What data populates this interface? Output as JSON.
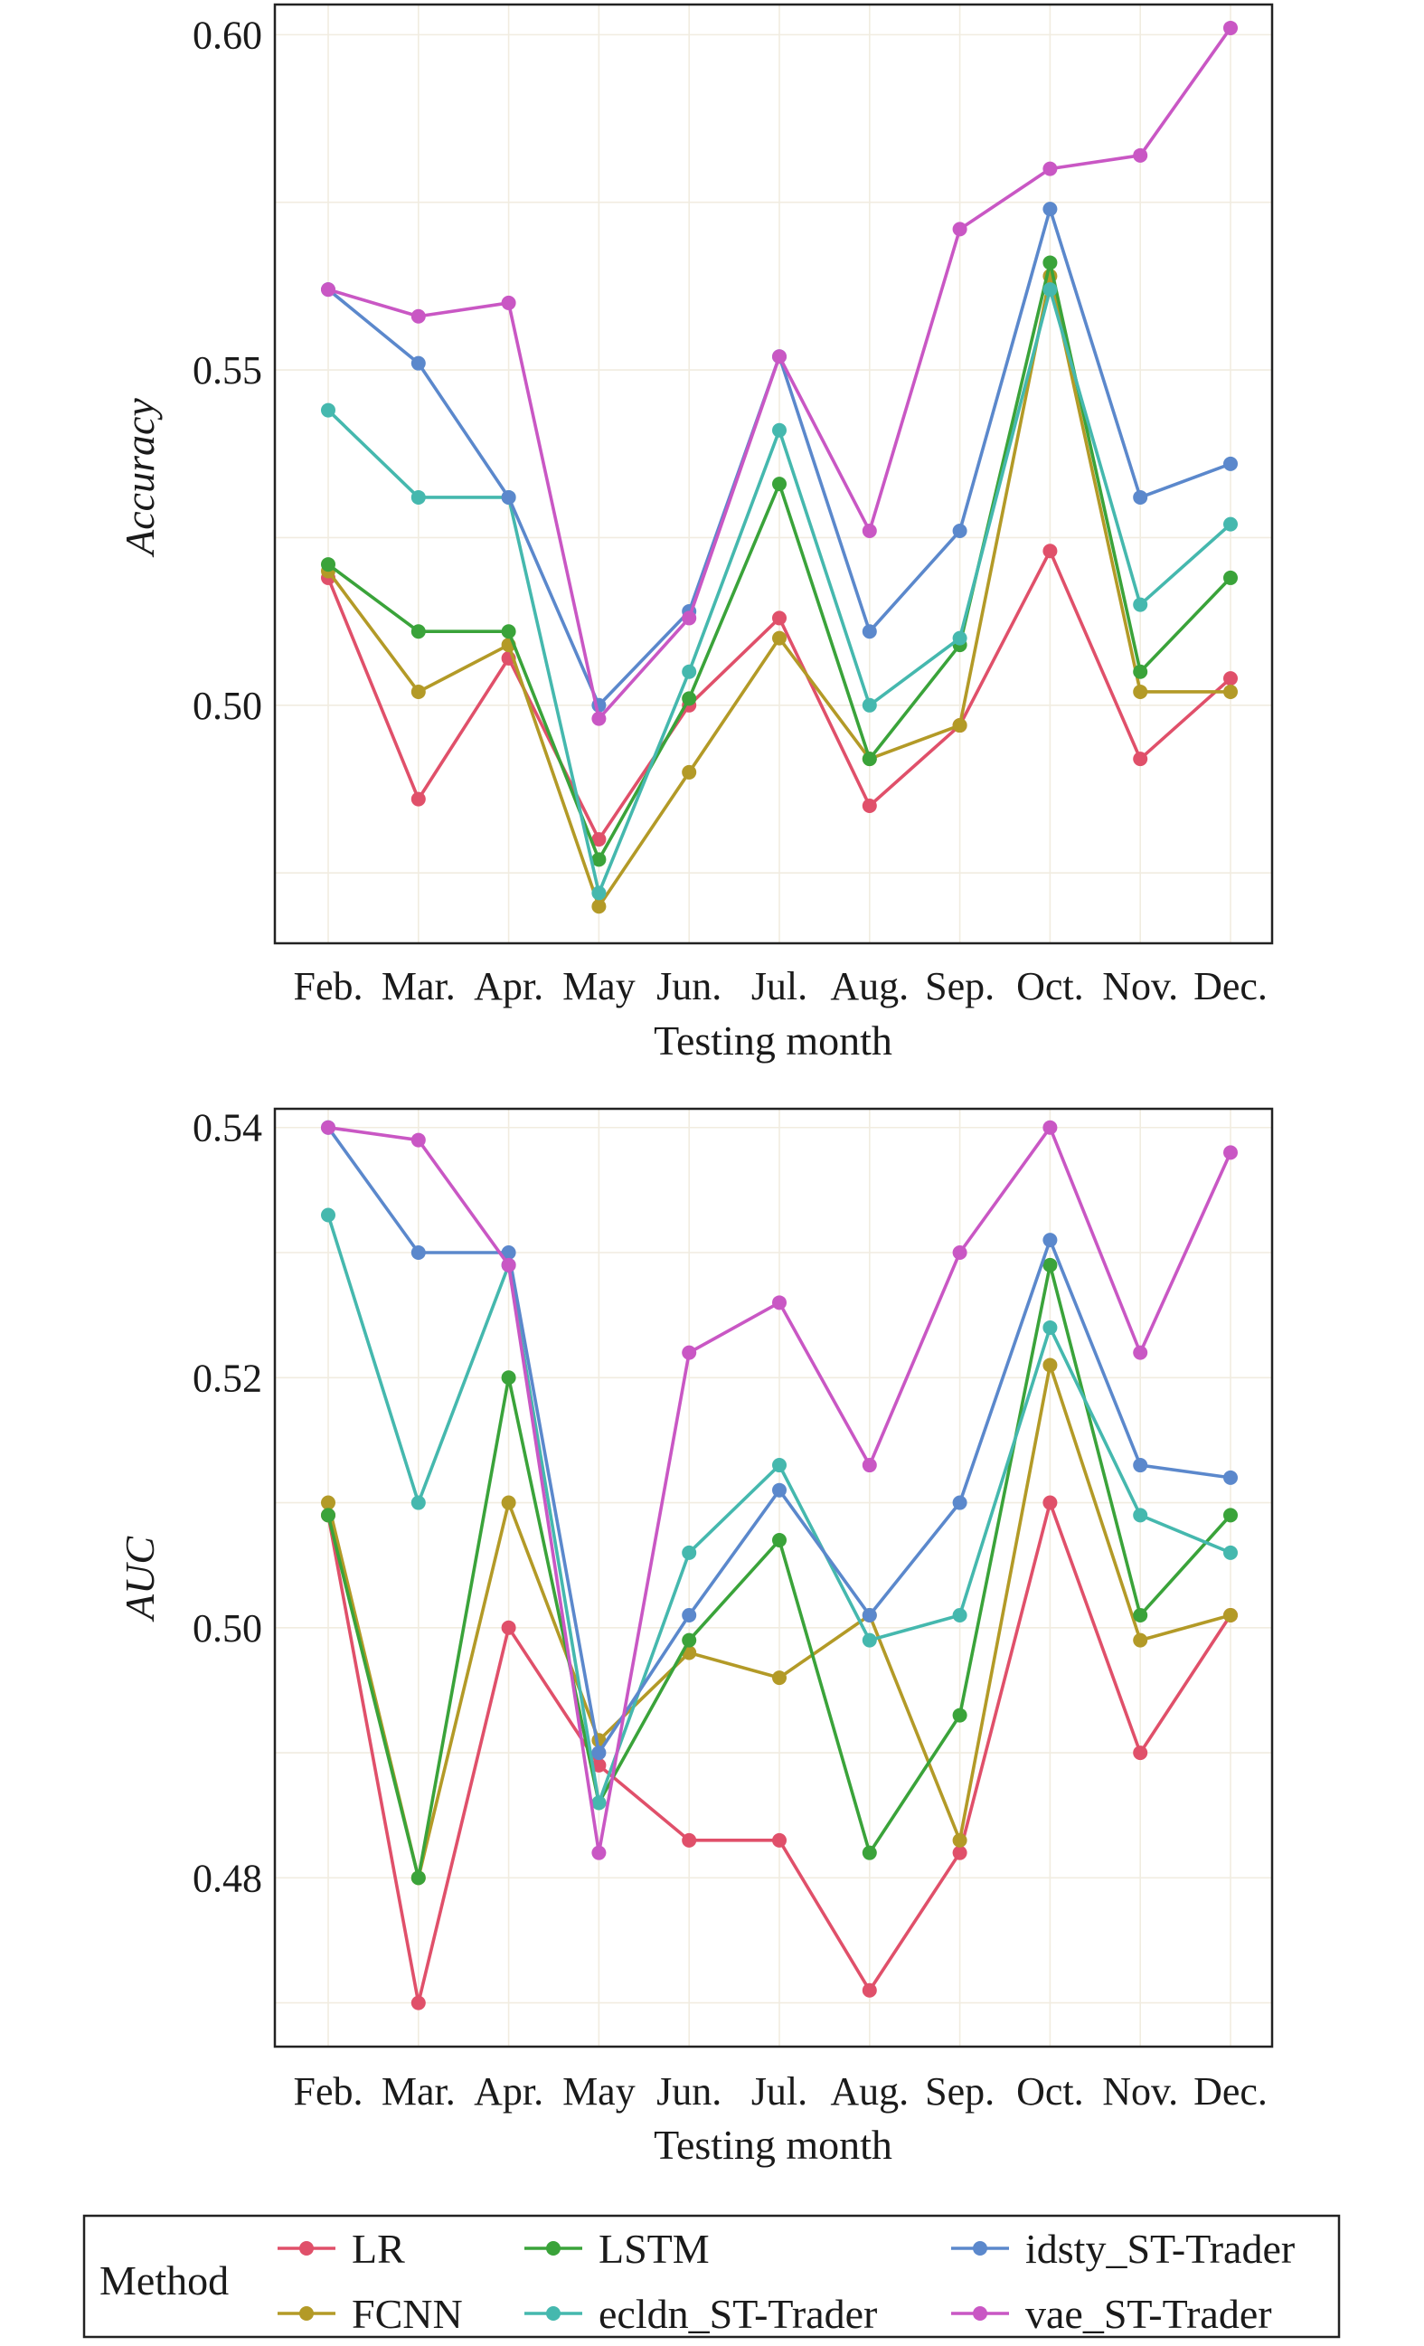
{
  "chart_data": [
    {
      "type": "line",
      "xlabel": "Testing month",
      "ylabel": "Accuracy",
      "categories": [
        "Feb.",
        "Mar.",
        "Apr.",
        "May",
        "Jun.",
        "Jul.",
        "Aug.",
        "Sep.",
        "Oct.",
        "Nov.",
        "Dec."
      ],
      "ylim": [
        0.4645,
        0.6045
      ],
      "yticks": [
        0.5,
        0.55,
        0.6
      ],
      "ytick_labels": [
        "0.50",
        "0.55",
        "0.60"
      ],
      "grid": true,
      "series": [
        {
          "name": "LR",
          "color": "#e0506a",
          "values": [
            0.519,
            0.486,
            0.507,
            0.48,
            0.5,
            0.513,
            0.485,
            0.497,
            0.523,
            0.492,
            0.504
          ]
        },
        {
          "name": "FCNN",
          "color": "#b39a27",
          "values": [
            0.52,
            0.502,
            0.509,
            0.47,
            0.49,
            0.51,
            0.492,
            0.497,
            0.564,
            0.502,
            0.502
          ]
        },
        {
          "name": "LSTM",
          "color": "#3aa33a",
          "values": [
            0.521,
            0.511,
            0.511,
            0.477,
            0.501,
            0.533,
            0.492,
            0.509,
            0.566,
            0.505,
            0.519
          ]
        },
        {
          "name": "ecldn_ST-Trader",
          "color": "#45b8ae",
          "values": [
            0.544,
            0.531,
            0.531,
            0.472,
            0.505,
            0.541,
            0.5,
            0.51,
            0.562,
            0.515,
            0.527
          ]
        },
        {
          "name": "idsty_ST-Trader",
          "color": "#5b88cc",
          "values": [
            0.562,
            0.551,
            0.531,
            0.5,
            0.514,
            0.552,
            0.511,
            0.526,
            0.574,
            0.531,
            0.536
          ]
        },
        {
          "name": "vae_ST-Trader",
          "color": "#c957c4",
          "values": [
            0.562,
            0.558,
            0.56,
            0.498,
            0.513,
            0.552,
            0.526,
            0.571,
            0.58,
            0.582,
            0.601
          ]
        }
      ]
    },
    {
      "type": "line",
      "xlabel": "Testing month",
      "ylabel": "AUC",
      "categories": [
        "Feb.",
        "Mar.",
        "Apr.",
        "May",
        "Jun.",
        "Jul.",
        "Aug.",
        "Sep.",
        "Oct.",
        "Nov.",
        "Dec."
      ],
      "ylim": [
        0.4665,
        0.5415
      ],
      "yticks": [
        0.48,
        0.5,
        0.52,
        0.54
      ],
      "ytick_labels": [
        "0.48",
        "0.50",
        "0.52",
        "0.54"
      ],
      "grid": true,
      "series": [
        {
          "name": "LR",
          "color": "#e0506a",
          "values": [
            0.509,
            0.47,
            0.5,
            0.489,
            0.483,
            0.483,
            0.471,
            0.482,
            0.51,
            0.49,
            0.501
          ]
        },
        {
          "name": "FCNN",
          "color": "#b39a27",
          "values": [
            0.51,
            0.48,
            0.51,
            0.491,
            0.498,
            0.496,
            0.501,
            0.483,
            0.521,
            0.499,
            0.501
          ]
        },
        {
          "name": "LSTM",
          "color": "#3aa33a",
          "values": [
            0.509,
            0.48,
            0.52,
            0.486,
            0.499,
            0.507,
            0.482,
            0.493,
            0.529,
            0.501,
            0.509
          ]
        },
        {
          "name": "ecldn_ST-Trader",
          "color": "#45b8ae",
          "values": [
            0.533,
            0.51,
            0.529,
            0.486,
            0.506,
            0.513,
            0.499,
            0.501,
            0.524,
            0.509,
            0.506
          ]
        },
        {
          "name": "idsty_ST-Trader",
          "color": "#5b88cc",
          "values": [
            0.54,
            0.53,
            0.53,
            0.49,
            0.501,
            0.511,
            0.501,
            0.51,
            0.531,
            0.513,
            0.512
          ]
        },
        {
          "name": "vae_ST-Trader",
          "color": "#c957c4",
          "values": [
            0.54,
            0.539,
            0.529,
            0.482,
            0.522,
            0.526,
            0.513,
            0.53,
            0.54,
            0.522,
            0.538
          ]
        }
      ]
    }
  ],
  "legend": {
    "title": "Method",
    "placement": "bottom",
    "entries": [
      "LR",
      "FCNN",
      "LSTM",
      "ecldn_ST-Trader",
      "idsty_ST-Trader",
      "vae_ST-Trader"
    ]
  }
}
